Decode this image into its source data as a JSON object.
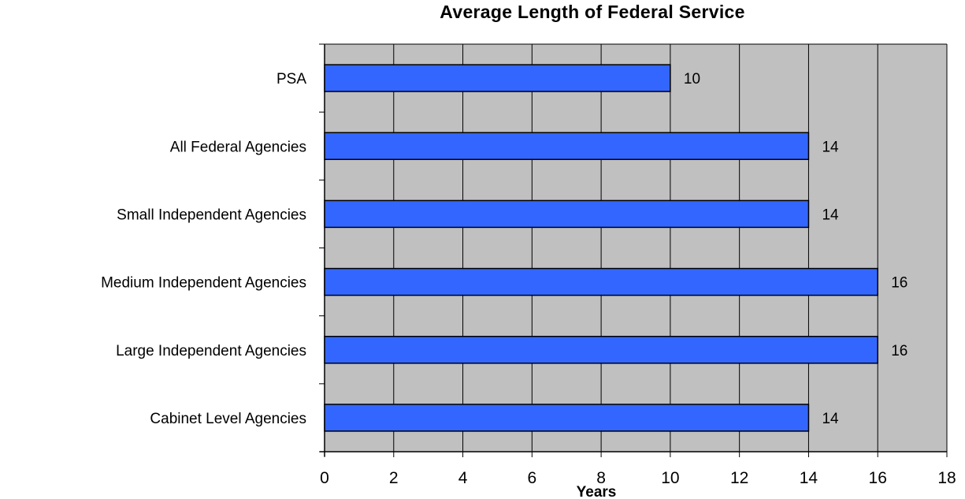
{
  "chart_data": {
    "type": "bar",
    "orientation": "horizontal",
    "title": "Average Length of Federal Service",
    "xlabel": "Years",
    "ylabel": "",
    "categories": [
      "PSA",
      "All Federal Agencies",
      "Small Independent Agencies",
      "Medium Independent Agencies",
      "Large Independent Agencies",
      "Cabinet Level Agencies"
    ],
    "values": [
      10,
      14,
      14,
      16,
      16,
      14
    ],
    "data_labels": [
      "10",
      "14",
      "14",
      "16",
      "16",
      "14"
    ],
    "xlim": [
      0,
      18
    ],
    "x_ticks": [
      0,
      2,
      4,
      6,
      8,
      10,
      12,
      14,
      16,
      18
    ],
    "grid": "vertical",
    "legend": "none",
    "colors": {
      "bar_fill": "#3366FF",
      "bar_stroke": "#000000",
      "plot_background": "#C0C0C0",
      "gridline": "#000000"
    }
  }
}
